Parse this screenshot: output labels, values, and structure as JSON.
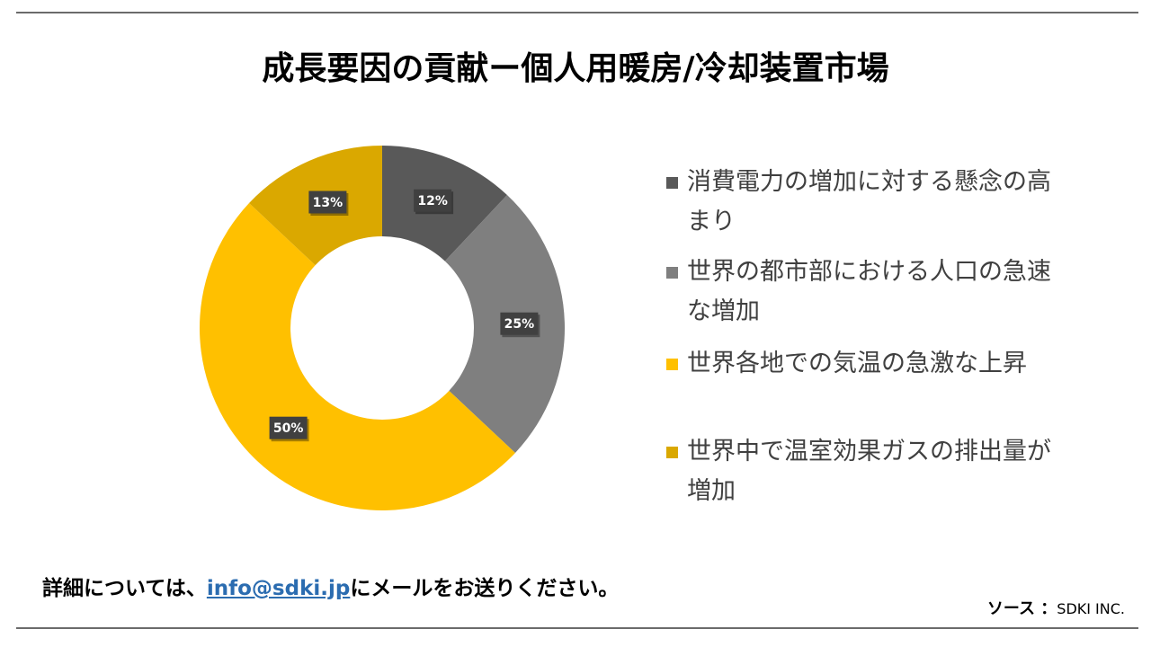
{
  "chart_data": {
    "type": "pie",
    "donut": true,
    "title": "成長要因の貢献ー個人用暖房/冷却装置市場",
    "categories": [
      "消費電力の増加に対する懸念の高まり",
      "世界の都市部における人口の急速な増加",
      "世界各地での気温の急激な上昇",
      "世界中で温室効果ガスの排出量が増加"
    ],
    "values": [
      12,
      25,
      50,
      13
    ],
    "value_labels": [
      "12%",
      "25%",
      "50%",
      "13%"
    ],
    "colors": [
      "#595959",
      "#7f7f7f",
      "#ffc000",
      "#daa800"
    ],
    "legend_position": "right"
  },
  "footer": {
    "contact_prefix": "詳細については、",
    "contact_email": "info@sdki.jp",
    "contact_suffix": "にメールをお送りください。",
    "source_label": "ソース ：",
    "source_name": "SDKI INC."
  }
}
